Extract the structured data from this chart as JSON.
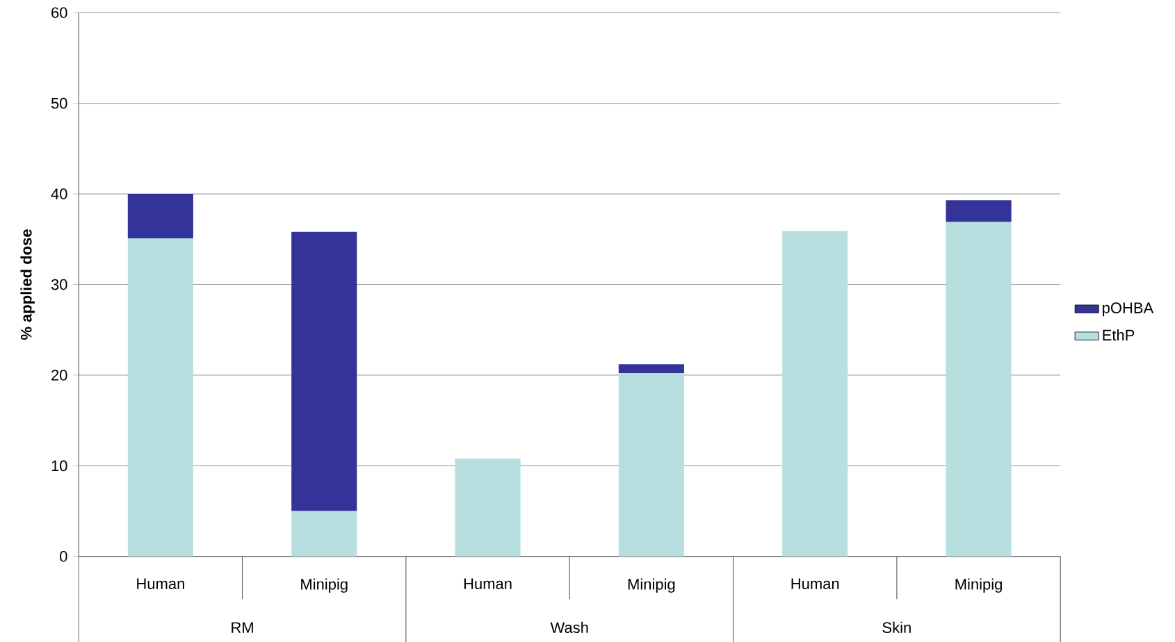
{
  "chart_data": {
    "type": "bar",
    "stacked": true,
    "ylabel": "% applied dose",
    "categories": [
      "Human",
      "Minipig",
      "Human",
      "Minipig",
      "Human",
      "Minipig"
    ],
    "series": [
      {
        "name": "EthP",
        "color": "#b7dfe0",
        "values": [
          35.1,
          5.0,
          10.8,
          20.2,
          35.9,
          36.9
        ]
      },
      {
        "name": "pOHBA",
        "color": "#333399",
        "values": [
          4.9,
          30.8,
          0,
          1.0,
          0,
          2.4
        ]
      }
    ],
    "annotations": [
      "RM",
      "Wash",
      "Skin"
    ],
    "ylim": [
      0,
      60
    ],
    "yticks": [
      0,
      10,
      20,
      30,
      40,
      50,
      60
    ],
    "grid": "y",
    "legend": "right"
  }
}
